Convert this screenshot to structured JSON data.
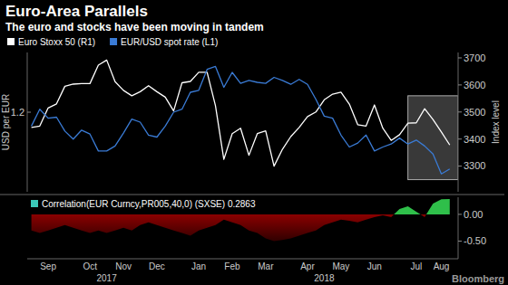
{
  "chart_data": [
    {
      "type": "line",
      "title": "Euro-Area Parallels",
      "subtitle": "The euro and stocks have been moving in tandem",
      "source": "Bloomberg",
      "y_label": "USD per EUR",
      "y2_label": "Index level",
      "legend": "top-left",
      "grid": false,
      "categories": [
        null,
        null,
        null,
        null,
        null,
        null,
        null,
        null,
        null,
        null,
        null,
        null,
        null,
        null,
        null,
        null,
        null,
        null,
        null,
        null,
        null,
        null,
        null,
        null,
        null,
        null,
        null,
        null,
        null,
        null,
        null,
        null,
        null,
        null,
        null,
        null,
        null,
        null,
        null,
        null,
        null,
        null,
        null,
        null,
        null,
        null,
        null,
        null,
        null,
        null,
        null
      ],
      "ylim": [
        1.12,
        1.26
      ],
      "yticks": [
        1.2
      ],
      "y2lim": [
        3205,
        3720
      ],
      "y2ticks": [
        3300,
        3400,
        3500,
        3600,
        3700
      ],
      "highlight": {
        "x": [
          45,
          51
        ],
        "y2": [
          3250,
          3560
        ]
      },
      "series": [
        {
          "name": "Euro Stoxx 50 (R1)",
          "color": "#ffffff",
          "axis": "y2",
          "values": [
            3443,
            3448,
            3515,
            3530,
            3595,
            3603,
            3605,
            3605,
            3673,
            3692,
            3612,
            3580,
            3560,
            3575,
            3597,
            3575,
            3555,
            3504,
            3608,
            3613,
            3647,
            3647,
            3523,
            3325,
            3420,
            3440,
            3340,
            3420,
            3430,
            3300,
            3362,
            3409,
            3443,
            3483,
            3500,
            3545,
            3566,
            3573,
            3529,
            3453,
            3448,
            3526,
            3440,
            3395,
            3416,
            3459,
            3460,
            3512,
            3472,
            3426,
            3378
          ]
        },
        {
          "name": "EUR/USD spot rate (L1)",
          "color": "#3a7bd5",
          "axis": "y",
          "values": [
            1.186,
            1.203,
            1.194,
            1.195,
            1.181,
            1.173,
            1.182,
            1.178,
            1.161,
            1.161,
            1.166,
            1.179,
            1.193,
            1.19,
            1.177,
            1.175,
            1.186,
            1.2,
            1.203,
            1.22,
            1.222,
            1.243,
            1.246,
            1.225,
            1.24,
            1.229,
            1.232,
            1.23,
            1.229,
            1.235,
            1.232,
            1.228,
            1.233,
            1.228,
            1.213,
            1.196,
            1.194,
            1.177,
            1.165,
            1.169,
            1.177,
            1.161,
            1.165,
            1.168,
            1.174,
            1.168,
            1.172,
            1.166,
            1.158,
            1.138,
            1.143
          ]
        }
      ]
    },
    {
      "type": "area",
      "legend": "top-left",
      "grid": false,
      "categories": [
        null,
        null,
        "Sep",
        null,
        null,
        null,
        null,
        "Oct",
        null,
        null,
        null,
        "Nov",
        null,
        null,
        null,
        "Dec",
        null,
        null,
        null,
        null,
        "Jan",
        null,
        null,
        null,
        "Feb",
        null,
        null,
        null,
        "Mar",
        null,
        null,
        null,
        null,
        "Apr",
        null,
        null,
        null,
        "May",
        null,
        null,
        null,
        "Jun",
        null,
        null,
        null,
        null,
        "Jul",
        null,
        null,
        "Aug",
        null
      ],
      "x2ticks": [
        {
          "value": 9,
          "label": "2017"
        },
        {
          "value": 35,
          "label": "2018"
        }
      ],
      "y2lim": [
        -0.83,
        0.32
      ],
      "y2ticks": [
        {
          "value": 0,
          "label": "0.00"
        },
        {
          "value": -0.5,
          "label": "-0.50"
        }
      ],
      "series": [
        {
          "name": "Correlation(EUR Curncy,PR005,40,0) (SXSE) 0.2863",
          "color": "#3cc9b9",
          "axis": "y2",
          "values": [
            -0.3,
            -0.35,
            -0.3,
            -0.25,
            -0.2,
            -0.25,
            -0.3,
            -0.35,
            -0.3,
            -0.35,
            -0.3,
            -0.25,
            -0.3,
            -0.2,
            -0.15,
            -0.2,
            -0.25,
            -0.3,
            -0.35,
            -0.4,
            -0.3,
            -0.25,
            -0.2,
            -0.1,
            -0.15,
            -0.2,
            -0.3,
            -0.35,
            -0.45,
            -0.5,
            -0.48,
            -0.45,
            -0.4,
            -0.35,
            -0.3,
            -0.2,
            -0.15,
            -0.1,
            -0.12,
            -0.15,
            -0.1,
            -0.05,
            -0.02,
            -0.05,
            0.1,
            0.15,
            0.05,
            -0.05,
            0.2,
            0.28,
            0.2863
          ]
        }
      ]
    }
  ]
}
